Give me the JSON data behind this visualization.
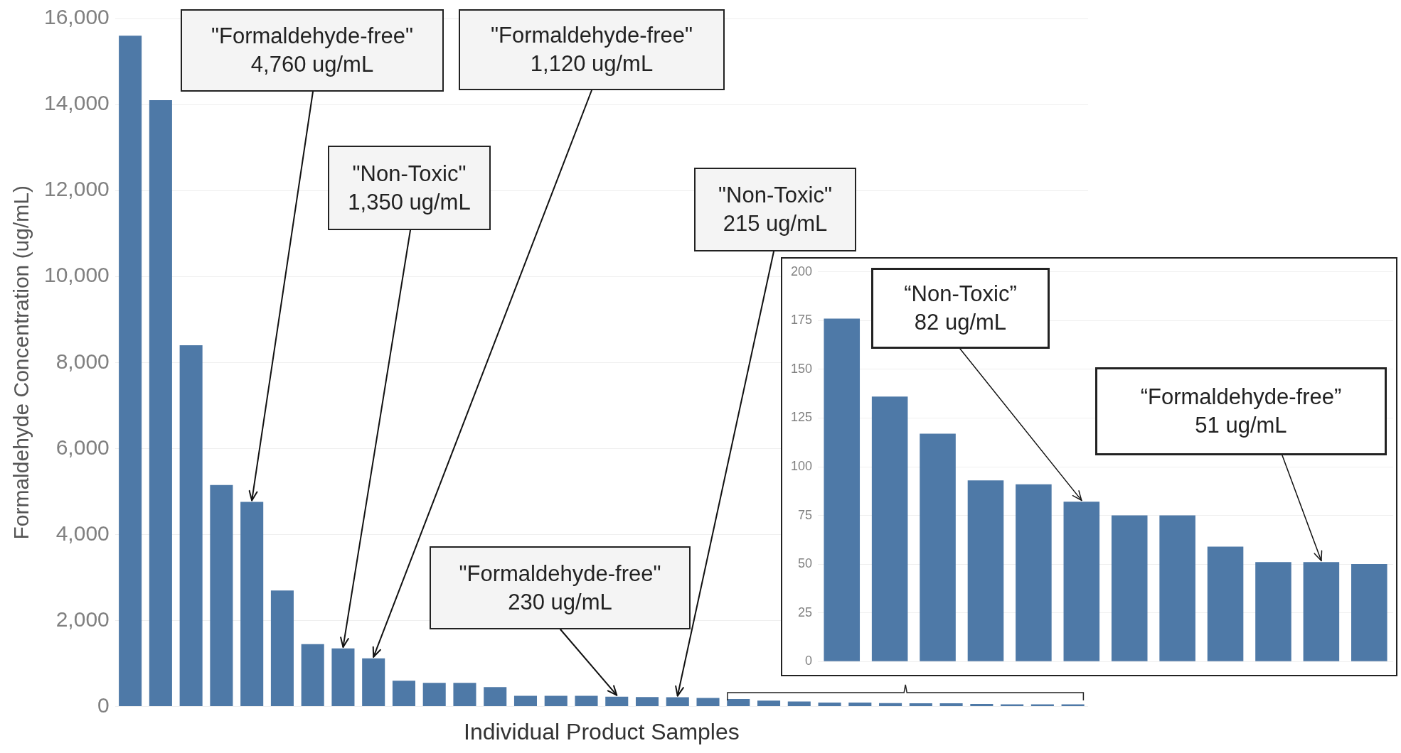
{
  "chart_data": [
    {
      "type": "bar",
      "xlabel": "Individual Product Samples",
      "ylabel": "Formaldehyde Concentration (ug/mL)",
      "categories": [
        null,
        null,
        null,
        null,
        null,
        null,
        null,
        null,
        null,
        null,
        null,
        null,
        null,
        null,
        null,
        null,
        null,
        null,
        null,
        null,
        null,
        null,
        null,
        null,
        null,
        null,
        null,
        null,
        null,
        null,
        null,
        null
      ],
      "values": [
        15600,
        14100,
        8400,
        5150,
        4760,
        2700,
        1450,
        1350,
        1120,
        600,
        550,
        550,
        450,
        250,
        250,
        250,
        230,
        220,
        215,
        200,
        176,
        136,
        117,
        93,
        91,
        82,
        75,
        75,
        59,
        51,
        51,
        50
      ],
      "color": "#4e79a7",
      "ylim": [
        0,
        16000
      ],
      "yticks": [
        0,
        {
          "value": 2000,
          "label": "2,000"
        },
        {
          "value": 4000,
          "label": "4,000"
        },
        {
          "value": 6000,
          "label": "6,000"
        },
        {
          "value": 8000,
          "label": "8,000"
        },
        {
          "value": 10000,
          "label": "10,000"
        },
        {
          "value": 12000,
          "label": "12,000"
        },
        {
          "value": 14000,
          "label": "14,000"
        },
        {
          "value": 16000,
          "label": "16,000"
        }
      ],
      "grid": "y",
      "legend": false,
      "tick_labels": "y",
      "annotations": [
        "\"Formaldehyde-free\"\n4,760 ug/mL",
        "\"Formaldehyde-free\"\n1,120 ug/mL",
        "\"Non-Toxic\"\n1,350 ug/mL",
        "\"Non-Toxic\"\n215 ug/mL",
        "\"Formaldehyde-free\"\n230 ug/mL"
      ]
    },
    {
      "type": "bar",
      "categories": [
        null,
        null,
        null,
        null,
        null,
        null,
        null,
        null,
        null,
        null,
        null,
        null
      ],
      "values": [
        176,
        136,
        117,
        93,
        91,
        82,
        75,
        75,
        59,
        51,
        51,
        50
      ],
      "color": "#4e79a7",
      "ylim": [
        0,
        200
      ],
      "yticks": [
        0,
        25,
        50,
        75,
        100,
        125,
        150,
        175,
        200
      ],
      "grid": "y",
      "legend": false,
      "tick_labels": "y",
      "annotations": [
        "“Non-Toxic”\n82 ug/mL",
        "“Formaldehyde-free”\n51 ug/mL"
      ]
    }
  ]
}
